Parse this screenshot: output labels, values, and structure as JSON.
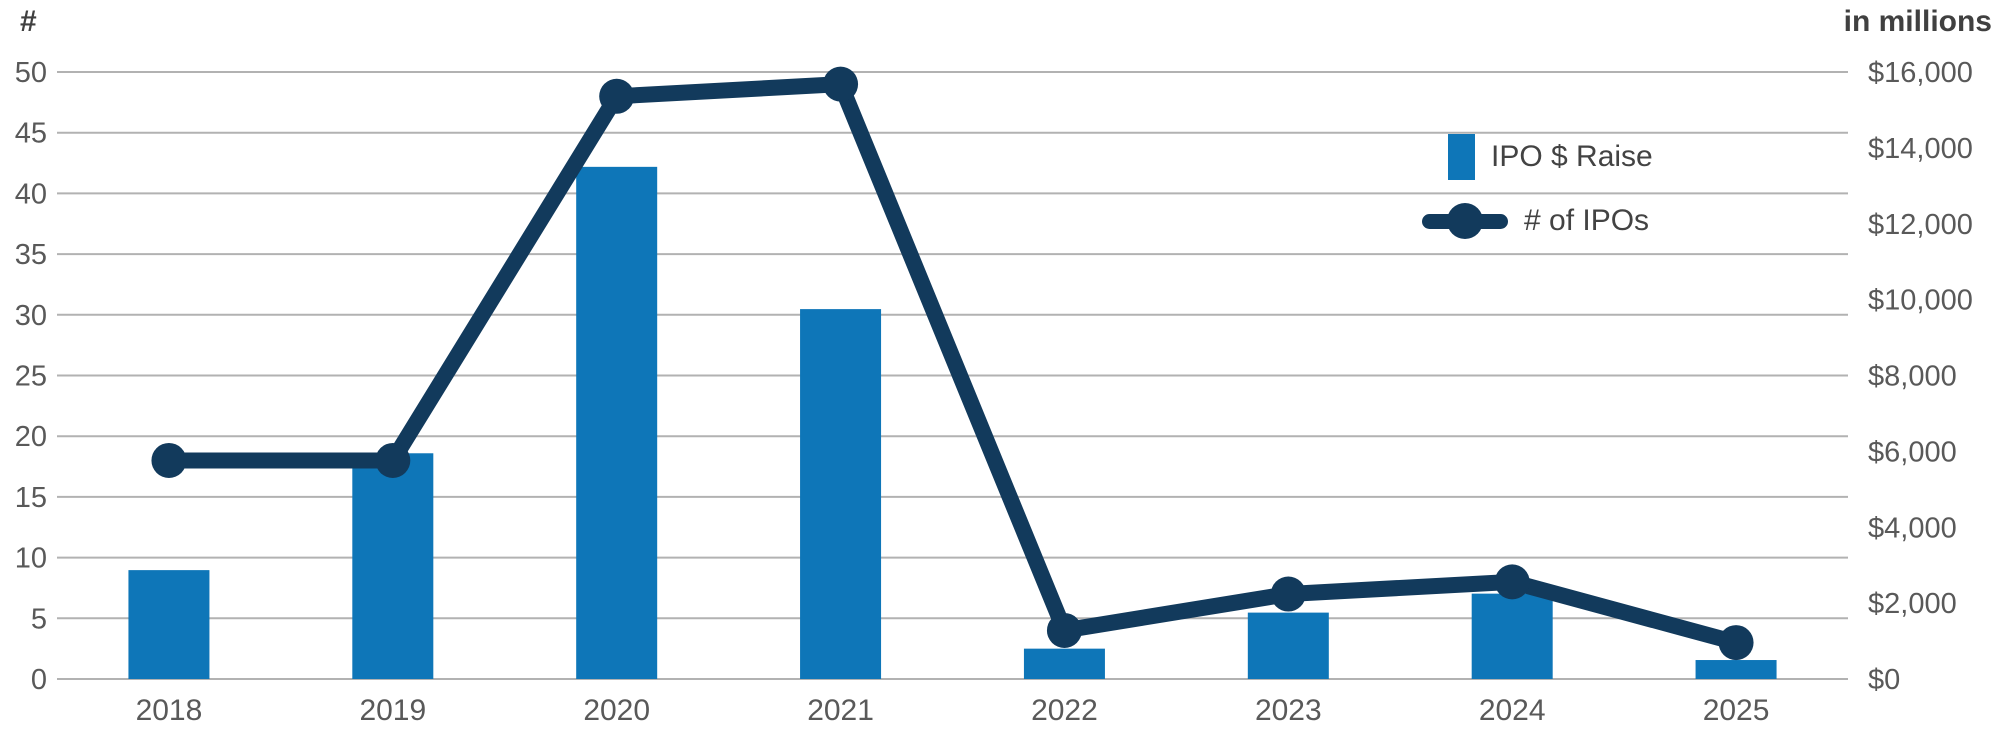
{
  "chart": {
    "left_axis_title": "#",
    "right_axis_title": "in millions",
    "colors": {
      "bar": "#0e76b8",
      "line": "#123a5c",
      "grid": "#b2b2b2",
      "tick_text": "#595959",
      "legend_text": "#434343",
      "background": "#ffffff"
    }
  },
  "chart_data": {
    "type": "combo (bar + line, dual axis)",
    "categories": [
      "2018",
      "2019",
      "2020",
      "2021",
      "2022",
      "2023",
      "2024",
      "2025"
    ],
    "series": [
      {
        "name": "IPO $ Raise",
        "type": "bar",
        "axis": "right",
        "unit": "$ millions",
        "values": [
          2870,
          5950,
          13500,
          9750,
          800,
          1750,
          2250,
          500
        ]
      },
      {
        "name": "# of IPOs",
        "type": "line",
        "axis": "left",
        "values": [
          18,
          18,
          48,
          49,
          4,
          7,
          8,
          3
        ]
      }
    ],
    "left_axis": {
      "title": "#",
      "min": 0,
      "max": 50,
      "step": 5,
      "tick_labels": [
        "0",
        "5",
        "10",
        "15",
        "20",
        "25",
        "30",
        "35",
        "40",
        "45",
        "50"
      ]
    },
    "right_axis": {
      "title": "in millions",
      "min": 0,
      "max": 16000,
      "step": 2000,
      "tick_labels": [
        "$0",
        "$2,000",
        "$4,000",
        "$6,000",
        "$8,000",
        "$10,000",
        "$12,000",
        "$14,000",
        "$16,000"
      ]
    },
    "grid": "horizontal gridlines from left axis, every 5 units",
    "legend_position": "top-right inside plot area"
  }
}
